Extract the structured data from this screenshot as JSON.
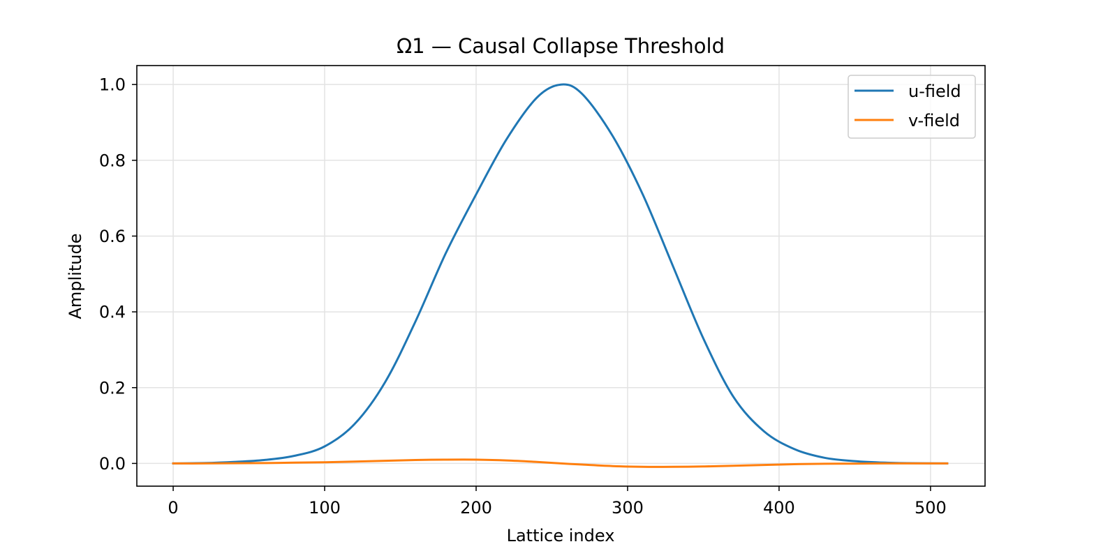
{
  "chart_data": {
    "type": "line",
    "title": "Ω1 — Causal Collapse Threshold",
    "xlabel": "Lattice index",
    "ylabel": "Amplitude",
    "xlim": [
      -24,
      536
    ],
    "ylim": [
      -0.06,
      1.05
    ],
    "xticks": [
      0,
      100,
      200,
      300,
      400,
      500
    ],
    "xtick_labels": [
      "0",
      "100",
      "200",
      "300",
      "400",
      "500"
    ],
    "yticks": [
      0.0,
      0.2,
      0.4,
      0.6,
      0.8,
      1.0
    ],
    "ytick_labels": [
      "0.0",
      "0.2",
      "0.4",
      "0.6",
      "0.8",
      "1.0"
    ],
    "grid": true,
    "legend_position": "top-right",
    "x": [
      0,
      20,
      40,
      60,
      80,
      100,
      120,
      140,
      160,
      180,
      200,
      220,
      240,
      256,
      270,
      290,
      310,
      330,
      350,
      370,
      390,
      410,
      430,
      450,
      470,
      490,
      511
    ],
    "series": [
      {
        "name": "u-field",
        "color": "#1f77b4",
        "values": [
          0.0,
          0.001,
          0.004,
          0.009,
          0.02,
          0.045,
          0.105,
          0.215,
          0.375,
          0.555,
          0.71,
          0.855,
          0.965,
          1.0,
          0.975,
          0.865,
          0.71,
          0.52,
          0.33,
          0.175,
          0.085,
          0.038,
          0.015,
          0.006,
          0.002,
          0.0005,
          0.0
        ]
      },
      {
        "name": "v-field",
        "color": "#ff7f0e",
        "values": [
          0.0,
          0.0,
          0.0005,
          0.001,
          0.002,
          0.003,
          0.005,
          0.007,
          0.009,
          0.01,
          0.01,
          0.008,
          0.004,
          0.0,
          -0.003,
          -0.007,
          -0.009,
          -0.009,
          -0.008,
          -0.006,
          -0.004,
          -0.002,
          -0.001,
          -0.0005,
          0.0,
          0.0,
          0.0
        ]
      }
    ]
  }
}
